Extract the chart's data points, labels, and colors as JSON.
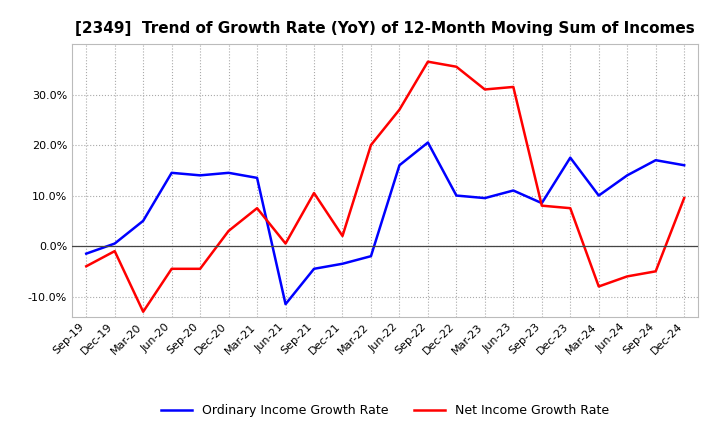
{
  "title": "[2349]  Trend of Growth Rate (YoY) of 12-Month Moving Sum of Incomes",
  "x_labels": [
    "Sep-19",
    "Dec-19",
    "Mar-20",
    "Jun-20",
    "Sep-20",
    "Dec-20",
    "Mar-21",
    "Jun-21",
    "Sep-21",
    "Dec-21",
    "Mar-22",
    "Jun-22",
    "Sep-22",
    "Dec-22",
    "Mar-23",
    "Jun-23",
    "Sep-23",
    "Dec-23",
    "Mar-24",
    "Jun-24",
    "Sep-24",
    "Dec-24"
  ],
  "ordinary_income": [
    -1.5,
    0.5,
    5.0,
    14.5,
    14.0,
    14.5,
    13.5,
    -11.5,
    -4.5,
    -3.5,
    -2.0,
    16.0,
    20.5,
    10.0,
    9.5,
    11.0,
    8.5,
    17.5,
    10.0,
    14.0,
    17.0,
    16.0
  ],
  "net_income": [
    -4.0,
    -1.0,
    -13.0,
    -4.5,
    -4.5,
    3.0,
    7.5,
    0.5,
    10.5,
    2.0,
    20.0,
    27.0,
    36.5,
    35.5,
    31.0,
    31.5,
    8.0,
    7.5,
    -8.0,
    -6.0,
    -5.0,
    9.5
  ],
  "ordinary_color": "#0000ff",
  "net_color": "#ff0000",
  "ylim": [
    -14,
    40
  ],
  "yticks": [
    -10.0,
    0.0,
    10.0,
    20.0,
    30.0
  ],
  "background_color": "#ffffff",
  "plot_bg_color": "#ffffff",
  "grid_color": "#aaaaaa",
  "legend_ordinary": "Ordinary Income Growth Rate",
  "legend_net": "Net Income Growth Rate",
  "line_width": 1.8,
  "title_fontsize": 11,
  "tick_fontsize": 8,
  "legend_fontsize": 9
}
